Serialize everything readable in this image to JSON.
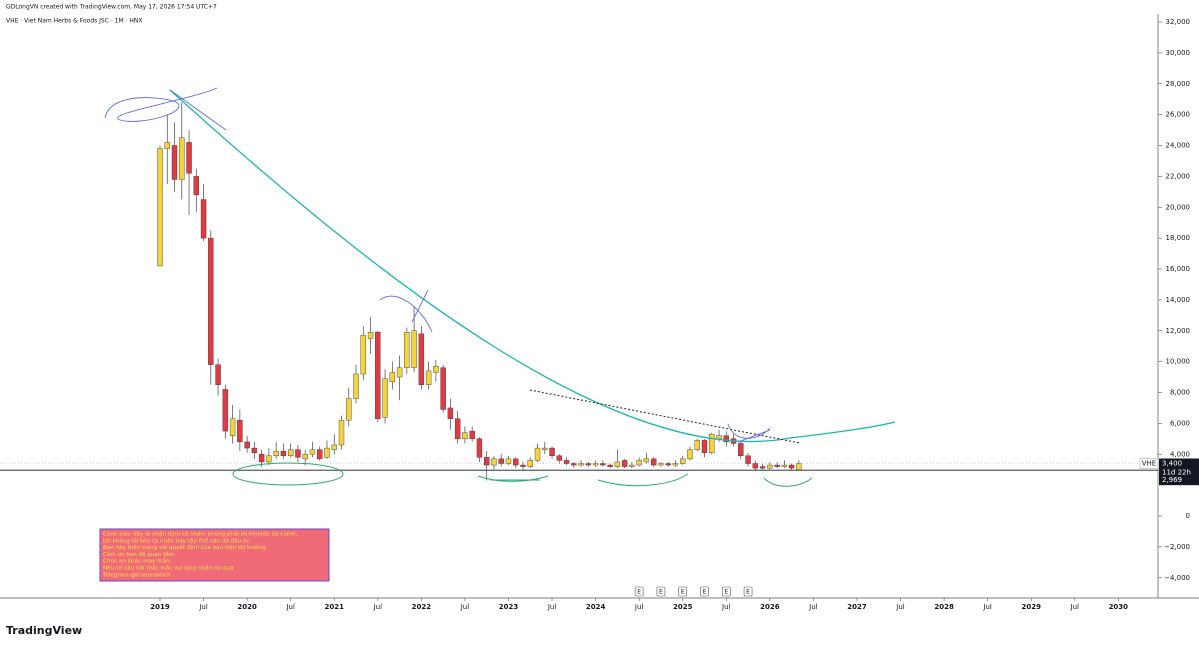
{
  "header": {
    "credit": "GDLongVN created with TradingView.com, May 17, 2026 17:54 UTC+7",
    "logo": "TradingView"
  },
  "chart_data": {
    "type": "candlestick",
    "title": "VHE · Viet Nam Herbs & Foods JSC · 1M · HNX",
    "x": [
      "2019-01",
      "2019-02",
      "2019-03",
      "2019-04",
      "2019-05",
      "2019-06",
      "2019-07",
      "2019-08",
      "2019-09",
      "2019-10",
      "2019-11",
      "2019-12",
      "2020-01",
      "2020-02",
      "2020-03",
      "2020-04",
      "2020-05",
      "2020-06",
      "2020-07",
      "2020-08",
      "2020-09",
      "2020-10",
      "2020-11",
      "2020-12",
      "2021-01",
      "2021-02",
      "2021-03",
      "2021-04",
      "2021-05",
      "2021-06",
      "2021-07",
      "2021-08",
      "2021-09",
      "2021-10",
      "2021-11",
      "2021-12",
      "2022-01",
      "2022-02",
      "2022-03",
      "2022-04",
      "2022-05",
      "2022-06",
      "2022-07",
      "2022-08",
      "2022-09",
      "2022-10",
      "2022-11",
      "2022-12",
      "2023-01",
      "2023-02",
      "2023-03",
      "2023-04",
      "2023-05",
      "2023-06",
      "2023-07",
      "2023-08",
      "2023-09",
      "2023-10",
      "2023-11",
      "2023-12",
      "2024-01",
      "2024-02",
      "2024-03",
      "2024-04",
      "2024-05",
      "2024-06",
      "2024-07",
      "2024-08",
      "2024-09",
      "2024-10",
      "2024-11",
      "2024-12",
      "2025-01",
      "2025-02",
      "2025-03",
      "2025-04",
      "2025-05",
      "2025-06",
      "2025-07",
      "2025-08",
      "2025-09",
      "2025-10",
      "2025-11",
      "2025-12",
      "2026-01",
      "2026-02",
      "2026-03",
      "2026-04",
      "2026-05"
    ],
    "open": [
      16200,
      23800,
      24000,
      21800,
      24200,
      22000,
      20500,
      18000,
      9800,
      8200,
      5200,
      6200,
      4800,
      4400,
      4000,
      3500,
      3900,
      4200,
      3900,
      4300,
      3700,
      4000,
      4300,
      3800,
      4300,
      4600,
      6200,
      7600,
      9200,
      11500,
      11900,
      6400,
      8700,
      9000,
      9600,
      9600,
      11800,
      8500,
      9300,
      9600,
      7000,
      6300,
      5000,
      5500,
      5000,
      3800,
      3300,
      3700,
      3400,
      3700,
      3300,
      3200,
      3600,
      4300,
      4400,
      3900,
      3600,
      3400,
      3300,
      3400,
      3300,
      3400,
      3300,
      3200,
      3600,
      3200,
      3300,
      3500,
      3700,
      3300,
      3400,
      3300,
      3400,
      3700,
      4300,
      4900,
      4100,
      5000,
      5200,
      5000,
      4700,
      3900,
      3400,
      3200,
      3100,
      3300,
      3200,
      3300,
      3000
    ],
    "high": [
      24000,
      26000,
      25500,
      26800,
      25000,
      22500,
      21500,
      18500,
      10200,
      8500,
      7200,
      6900,
      5200,
      4800,
      4300,
      4400,
      4800,
      4700,
      4700,
      4600,
      4300,
      4800,
      4500,
      4900,
      5300,
      6500,
      8300,
      9800,
      12300,
      12900,
      12000,
      9500,
      10000,
      10400,
      12200,
      13600,
      12300,
      10000,
      10100,
      9800,
      7600,
      6800,
      5800,
      5800,
      5100,
      4200,
      3900,
      4000,
      3900,
      3800,
      3500,
      3800,
      4700,
      4800,
      4500,
      4000,
      3800,
      3500,
      3600,
      3500,
      3600,
      3600,
      3400,
      4300,
      3700,
      3500,
      3800,
      4100,
      3800,
      3500,
      3500,
      3600,
      3900,
      4500,
      5000,
      5000,
      5400,
      5600,
      5500,
      5300,
      4900,
      4100,
      3600,
      3400,
      3500,
      3500,
      3600,
      3400,
      3600
    ],
    "low": [
      16200,
      21500,
      21000,
      20500,
      19500,
      19700,
      17800,
      8500,
      7800,
      5000,
      4700,
      4200,
      4100,
      3700,
      3200,
      3300,
      3700,
      3700,
      3800,
      3500,
      3300,
      3800,
      3600,
      3700,
      4000,
      4300,
      5800,
      7300,
      8800,
      10500,
      6100,
      6000,
      8200,
      7500,
      9200,
      9300,
      8200,
      8200,
      8700,
      6700,
      5600,
      4700,
      4700,
      4800,
      3500,
      2300,
      3000,
      3200,
      3300,
      3100,
      2900,
      3100,
      3500,
      4000,
      3700,
      3400,
      3300,
      3100,
      3200,
      3200,
      3200,
      3200,
      3100,
      3100,
      3100,
      3100,
      3200,
      3400,
      3200,
      3200,
      3200,
      3200,
      3300,
      3600,
      4200,
      3800,
      4000,
      4800,
      4500,
      4500,
      3700,
      3200,
      2900,
      2969,
      3000,
      3100,
      3100,
      3000,
      3000
    ],
    "close": [
      23800,
      24200,
      21800,
      24500,
      22200,
      20800,
      18000,
      9800,
      8500,
      5500,
      6300,
      4800,
      4400,
      4100,
      3500,
      3900,
      4200,
      3900,
      4300,
      3800,
      4000,
      4300,
      3700,
      4400,
      4600,
      6200,
      7600,
      9200,
      11700,
      11900,
      6300,
      8900,
      9300,
      9600,
      11900,
      12000,
      8500,
      9400,
      9700,
      6900,
      6300,
      5000,
      5400,
      5000,
      3800,
      3300,
      3700,
      3400,
      3700,
      3300,
      3200,
      3600,
      4400,
      4400,
      3900,
      3600,
      3400,
      3300,
      3400,
      3300,
      3400,
      3300,
      3200,
      3500,
      3200,
      3300,
      3600,
      3700,
      3300,
      3400,
      3300,
      3400,
      3700,
      4300,
      4900,
      4100,
      5300,
      5200,
      4800,
      4700,
      3900,
      3400,
      3100,
      3100,
      3300,
      3200,
      3300,
      3100,
      3400
    ],
    "up_color": "#f5d33b",
    "down_color": "#e03a44",
    "ylim": [
      -5000,
      33000
    ],
    "yticks": [
      {
        "value": 32000,
        "label": "32,000"
      },
      {
        "value": 30000,
        "label": "30,000"
      },
      {
        "value": 28000,
        "label": "28,000"
      },
      {
        "value": 26000,
        "label": "26,000"
      },
      {
        "value": 24000,
        "label": "24,000"
      },
      {
        "value": 22000,
        "label": "22,000"
      },
      {
        "value": 20000,
        "label": "20,000"
      },
      {
        "value": 18000,
        "label": "18,000"
      },
      {
        "value": 16000,
        "label": "16,000"
      },
      {
        "value": 14000,
        "label": "14,000"
      },
      {
        "value": 12000,
        "label": "12,000"
      },
      {
        "value": 10000,
        "label": "10,000"
      },
      {
        "value": 8000,
        "label": "8,000"
      },
      {
        "value": 6000,
        "label": "6,000"
      },
      {
        "value": 4000,
        "label": "4,000"
      },
      0,
      {
        "value": -2000,
        "label": "−2,000"
      },
      {
        "value": -4000,
        "label": "−4,000"
      }
    ],
    "xticks": [
      {
        "value": "2019-01",
        "label": "2019"
      },
      {
        "value": "2019-07",
        "label": "Jul"
      },
      {
        "value": "2020-01",
        "label": "2020"
      },
      {
        "value": "2020-07",
        "label": "Jul"
      },
      {
        "value": "2021-01",
        "label": "2021"
      },
      {
        "value": "2021-07",
        "label": "Jul"
      },
      {
        "value": "2022-01",
        "label": "2022"
      },
      {
        "value": "2022-07",
        "label": "Jul"
      },
      {
        "value": "2023-01",
        "label": "2023"
      },
      {
        "value": "2023-07",
        "label": "Jul"
      },
      {
        "value": "2024-01",
        "label": "2024"
      },
      {
        "value": "2024-07",
        "label": "Jul"
      },
      {
        "value": "2025-01",
        "label": "2025"
      },
      {
        "value": "2025-07",
        "label": "Jul"
      },
      {
        "value": "2026-01",
        "label": "2026"
      },
      {
        "value": "2026-07",
        "label": "Jul"
      },
      {
        "value": "2027-01",
        "label": "2027"
      },
      {
        "value": "2027-07",
        "label": "Jul"
      },
      {
        "value": "2028-01",
        "label": "2028"
      },
      {
        "value": "2028-07",
        "label": "Jul"
      },
      {
        "value": "2029-01",
        "label": "2029"
      },
      {
        "value": "2029-07",
        "label": "Jul"
      },
      {
        "value": "2030-01",
        "label": "2030"
      }
    ],
    "last_price": {
      "symbol": "VHE",
      "value": 3400,
      "label": "3,400",
      "countdown": "11d 22h",
      "color": "#131722"
    },
    "hline": {
      "value": 2969,
      "label": "2,969",
      "color": "#131722"
    },
    "events": [
      {
        "x": "2024-07",
        "label": "E"
      },
      {
        "x": "2024-10",
        "label": "E"
      },
      {
        "x": "2025-01",
        "label": "E"
      },
      {
        "x": "2025-04",
        "label": "E"
      },
      {
        "x": "2025-07",
        "label": "E"
      },
      {
        "x": "2025-10",
        "label": "E"
      }
    ],
    "note": [
      "Cảnh báo: đây là nhận định cá nhân, không phải lời khuyên tài chính,",
      "tất không lôi kéo cá nhân hay tập thể nào đó đầu tư.",
      "Bạn hãy thận trọng với quyết định của bạn trên thị trường.",
      "Cảm ơn bạn đã quan tâm.",
      "Chúc an lành, may mắn.",
      "Nếu có câu hỏi thắc mắc vui lòng nhắn tin qua",
      "Telegram:@traderdutich"
    ]
  }
}
